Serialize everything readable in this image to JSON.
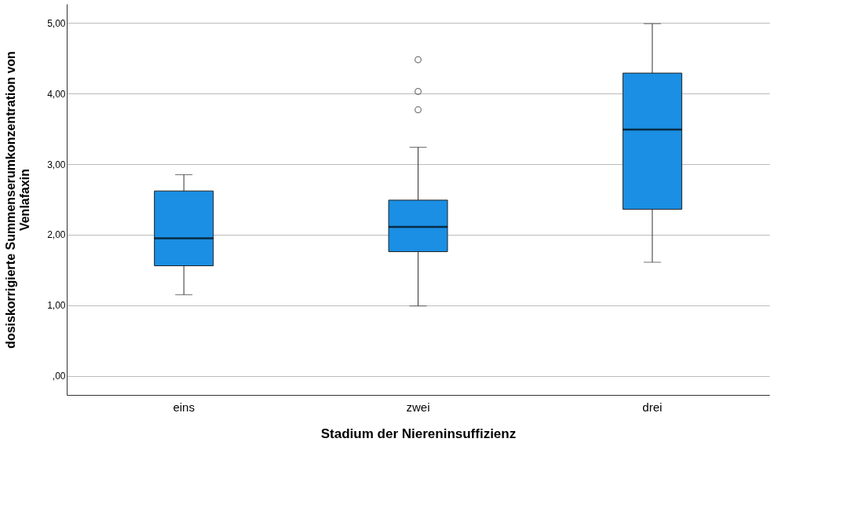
{
  "chart_data": {
    "type": "box",
    "xlabel": "Stadium der Niereninsuffizienz",
    "ylabel": "dosiskorrigierte Summenserumkonzentration von Venlafaxin",
    "categories": [
      "eins",
      "zwei",
      "drei"
    ],
    "series": [
      {
        "color": "#1a8fe3",
        "boxes": [
          {
            "low": 1.15,
            "q1": 1.56,
            "median": 1.95,
            "q3": 2.62,
            "high": 2.85
          },
          {
            "low": 0.99,
            "q1": 1.76,
            "median": 2.11,
            "q3": 2.49,
            "high": 3.24,
            "outliers": [
              3.77,
              4.03,
              4.48
            ]
          },
          {
            "low": 1.61,
            "q1": 2.36,
            "median": 3.49,
            "q3": 4.29,
            "high": 4.99
          }
        ]
      }
    ],
    "ylim": [
      -0.27,
      5.27
    ],
    "yticks": [
      {
        "value": 0,
        "label": ",00"
      },
      {
        "value": 1,
        "label": "1,00"
      },
      {
        "value": 2,
        "label": "2,00"
      },
      {
        "value": 3,
        "label": "3,00"
      },
      {
        "value": 4,
        "label": "4,00"
      },
      {
        "value": 5,
        "label": "5,00"
      }
    ],
    "grid": "y"
  }
}
